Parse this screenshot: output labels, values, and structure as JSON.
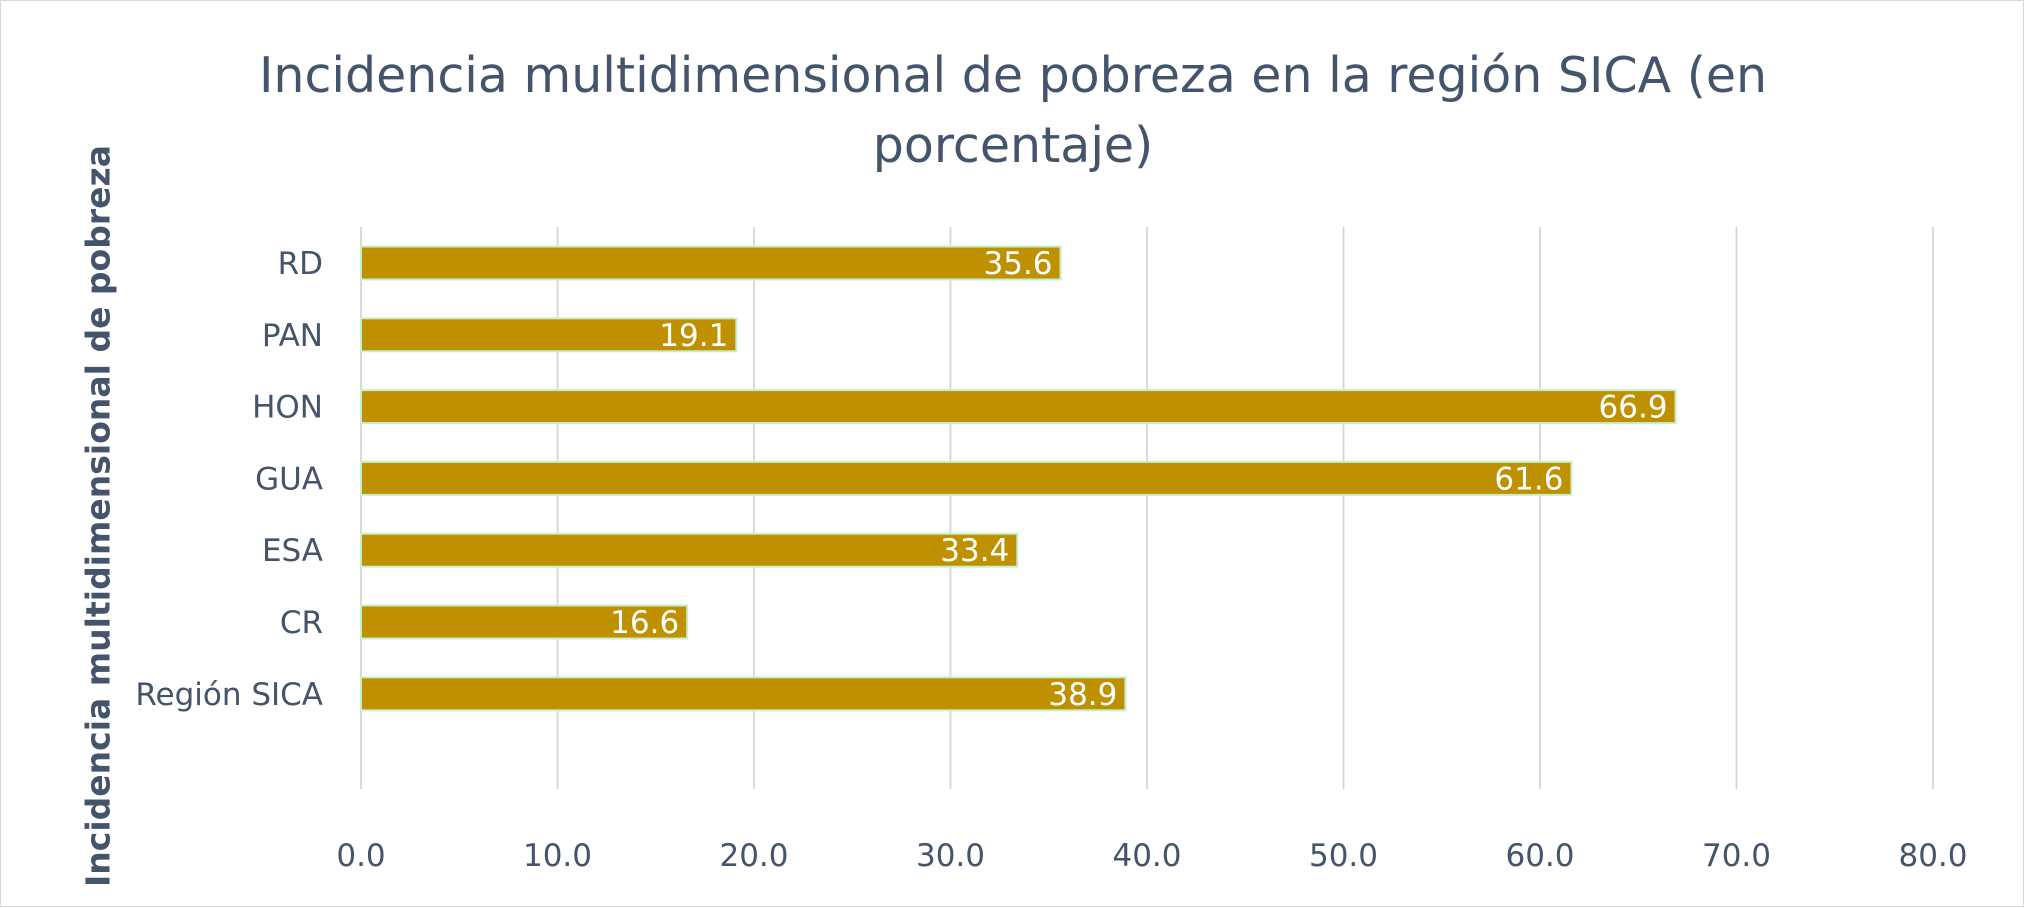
{
  "chart_data": {
    "type": "bar",
    "orientation": "horizontal",
    "title": "Incidencia multidimensional de pobreza en la región SICA (en porcentaje)",
    "title_lines": [
      "Incidencia multidimensional de pobreza en la región SICA (en",
      "porcentaje)"
    ],
    "ylabel": "Incidencia multidimensional de pobreza",
    "xlabel": "",
    "categories": [
      "RD",
      "PAN",
      "HON",
      "GUA",
      "ESA",
      "CR",
      "Región SICA"
    ],
    "values": [
      35.6,
      19.1,
      66.9,
      61.6,
      33.4,
      16.6,
      38.9
    ],
    "data_labels": [
      "35.6",
      "19.1",
      "66.9",
      "61.6",
      "33.4",
      "16.6",
      "38.9"
    ],
    "xlim": [
      0,
      80
    ],
    "x_ticks": [
      0,
      10,
      20,
      30,
      40,
      50,
      60,
      70,
      80
    ],
    "x_tick_labels": [
      "0.0",
      "10.0",
      "20.0",
      "30.0",
      "40.0",
      "50.0",
      "60.0",
      "70.0",
      "80.0"
    ],
    "grid": true,
    "legend": "none",
    "colors": {
      "bar": "#bf9000",
      "bar_outline": "#c6efce",
      "grid": "#d9d9d9",
      "text": "#44546a",
      "data_label": "#ffffff"
    }
  }
}
